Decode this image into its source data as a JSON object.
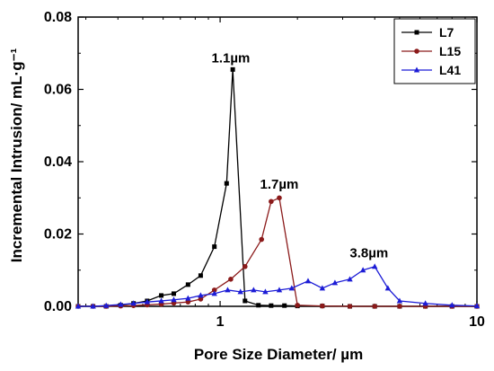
{
  "chart_data": {
    "type": "line",
    "xscale": "log",
    "xlim": [
      0.28,
      10
    ],
    "ylim": [
      0,
      0.08
    ],
    "xticks": [
      1,
      10
    ],
    "xtick_labels": [
      "1",
      "10"
    ],
    "yticks": [
      0,
      0.02,
      0.04,
      0.06,
      0.08
    ],
    "ytick_labels": [
      "0.00",
      "0.02",
      "0.04",
      "0.06",
      "0.08"
    ],
    "xlabel": "Pore Size Diameter/ µm",
    "ylabel": "Incremental Intrusion/ mL·g⁻¹",
    "legend_position": "top-right",
    "grid": false,
    "series": [
      {
        "name": "L7",
        "color": "#000000",
        "marker": "square",
        "x": [
          0.28,
          0.32,
          0.36,
          0.41,
          0.46,
          0.52,
          0.59,
          0.66,
          0.75,
          0.84,
          0.95,
          1.06,
          1.12,
          1.25,
          1.41,
          1.58,
          1.78,
          2.0,
          2.5,
          3.2,
          4.0,
          5.0,
          6.3,
          8.0,
          10.0
        ],
        "y": [
          0.0,
          0.0,
          0.0,
          0.0003,
          0.0008,
          0.0015,
          0.003,
          0.0035,
          0.006,
          0.0085,
          0.0165,
          0.034,
          0.0655,
          0.0015,
          0.0003,
          0.0002,
          0.0002,
          0.0001,
          0.0001,
          0.0,
          0.0,
          0.0,
          0.0,
          0.0,
          0.0
        ]
      },
      {
        "name": "L15",
        "color": "#8b1a1a",
        "marker": "circle",
        "x": [
          0.28,
          0.32,
          0.36,
          0.41,
          0.46,
          0.52,
          0.59,
          0.66,
          0.75,
          0.84,
          0.95,
          1.1,
          1.25,
          1.45,
          1.58,
          1.7,
          2.0,
          2.5,
          3.2,
          4.0,
          5.0,
          6.3,
          8.0,
          10.0
        ],
        "y": [
          0.0,
          0.0,
          0.0,
          0.0001,
          0.0002,
          0.0004,
          0.0006,
          0.0009,
          0.0012,
          0.002,
          0.0045,
          0.0075,
          0.011,
          0.0185,
          0.029,
          0.03,
          0.0003,
          0.0001,
          0.0,
          0.0,
          0.0,
          0.0,
          0.0,
          0.0
        ]
      },
      {
        "name": "L41",
        "color": "#1c1cd6",
        "marker": "triangle",
        "x": [
          0.28,
          0.32,
          0.36,
          0.41,
          0.46,
          0.52,
          0.59,
          0.66,
          0.75,
          0.84,
          0.95,
          1.07,
          1.2,
          1.35,
          1.5,
          1.7,
          1.9,
          2.2,
          2.5,
          2.8,
          3.2,
          3.6,
          4.0,
          4.5,
          5.0,
          6.3,
          8.0,
          10.0
        ],
        "y": [
          0.0,
          0.0,
          0.0002,
          0.0005,
          0.0008,
          0.0012,
          0.0015,
          0.0018,
          0.0022,
          0.003,
          0.0035,
          0.0045,
          0.004,
          0.0045,
          0.004,
          0.0045,
          0.005,
          0.007,
          0.005,
          0.0065,
          0.0075,
          0.01,
          0.011,
          0.005,
          0.0015,
          0.0008,
          0.0003,
          0.0001
        ]
      }
    ],
    "annotations": [
      {
        "text": "1.1µm",
        "x": 1.1,
        "y": 0.0675
      },
      {
        "text": "1.7µm",
        "x": 1.7,
        "y": 0.0325
      },
      {
        "text": "3.8µm",
        "x": 3.8,
        "y": 0.0135
      }
    ]
  }
}
